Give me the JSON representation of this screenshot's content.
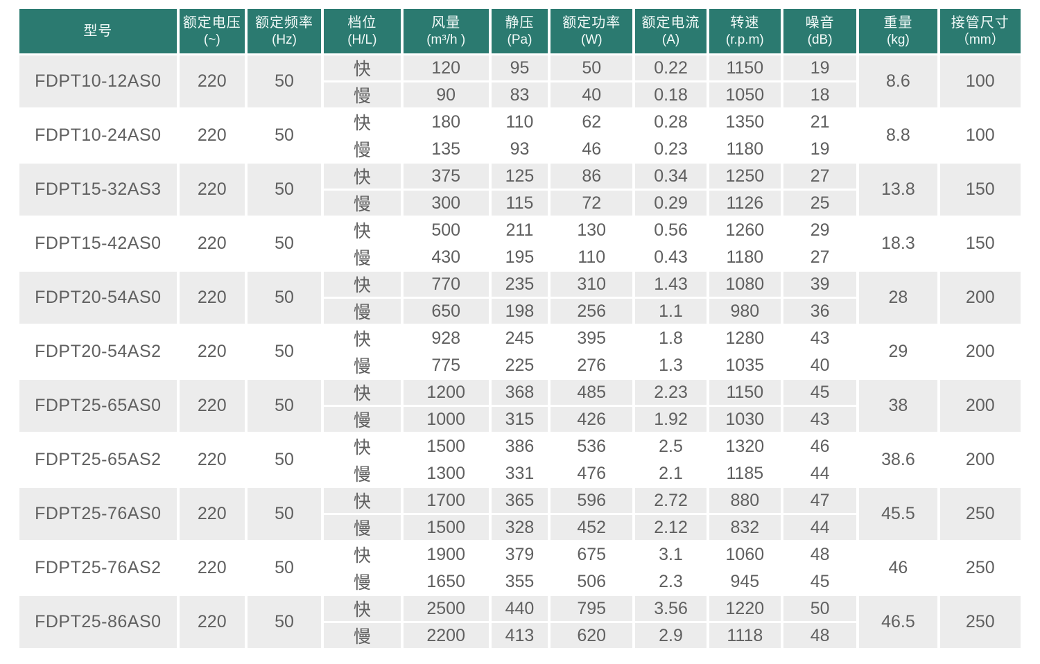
{
  "colors": {
    "header_bg": "#2b7a70",
    "header_text": "#f2faf8",
    "alt_row_bg": "#ececec",
    "body_text": "#606060"
  },
  "table": {
    "columns": [
      {
        "key": "model",
        "label": "型号",
        "unit": ""
      },
      {
        "key": "voltage",
        "label": "额定电压",
        "unit": "(~)"
      },
      {
        "key": "frequency",
        "label": "额定频率",
        "unit": "(Hz)"
      },
      {
        "key": "gear",
        "label": "档位",
        "unit": "(H/L)"
      },
      {
        "key": "airflow",
        "label": "风量",
        "unit": "(m³/h )"
      },
      {
        "key": "pressure",
        "label": "静压",
        "unit": "(Pa)"
      },
      {
        "key": "power",
        "label": "额定功率",
        "unit": "(W)"
      },
      {
        "key": "current",
        "label": "额定电流",
        "unit": "(A)"
      },
      {
        "key": "speed",
        "label": "转速",
        "unit": "(r.p.m)"
      },
      {
        "key": "noise",
        "label": "噪音",
        "unit": "(dB)"
      },
      {
        "key": "weight",
        "label": "重量",
        "unit": "(kg)"
      },
      {
        "key": "pipe",
        "label": "接管尺寸",
        "unit": "（mm）"
      }
    ],
    "groups": [
      {
        "model": "FDPT10-12AS0",
        "voltage": "220",
        "frequency": "50",
        "rows": [
          {
            "gear": "快",
            "airflow": "120",
            "pressure": "95",
            "power": "50",
            "current": "0.22",
            "speed": "1150",
            "noise": "19"
          },
          {
            "gear": "慢",
            "airflow": "90",
            "pressure": "83",
            "power": "40",
            "current": "0.18",
            "speed": "1050",
            "noise": "18"
          }
        ],
        "weight": "8.6",
        "pipe": "100"
      },
      {
        "model": "FDPT10-24AS0",
        "voltage": "220",
        "frequency": "50",
        "rows": [
          {
            "gear": "快",
            "airflow": "180",
            "pressure": "110",
            "power": "62",
            "current": "0.28",
            "speed": "1350",
            "noise": "21"
          },
          {
            "gear": "慢",
            "airflow": "135",
            "pressure": "93",
            "power": "46",
            "current": "0.23",
            "speed": "1180",
            "noise": "19"
          }
        ],
        "weight": "8.8",
        "pipe": "100"
      },
      {
        "model": "FDPT15-32AS3",
        "voltage": "220",
        "frequency": "50",
        "rows": [
          {
            "gear": "快",
            "airflow": "375",
            "pressure": "125",
            "power": "86",
            "current": "0.34",
            "speed": "1250",
            "noise": "27"
          },
          {
            "gear": "慢",
            "airflow": "300",
            "pressure": "115",
            "power": "72",
            "current": "0.29",
            "speed": "1126",
            "noise": "25"
          }
        ],
        "weight": "13.8",
        "pipe": "150"
      },
      {
        "model": "FDPT15-42AS0",
        "voltage": "220",
        "frequency": "50",
        "rows": [
          {
            "gear": "快",
            "airflow": "500",
            "pressure": "211",
            "power": "130",
            "current": "0.56",
            "speed": "1260",
            "noise": "29"
          },
          {
            "gear": "慢",
            "airflow": "430",
            "pressure": "195",
            "power": "110",
            "current": "0.43",
            "speed": "1180",
            "noise": "27"
          }
        ],
        "weight": "18.3",
        "pipe": "150"
      },
      {
        "model": "FDPT20-54AS0",
        "voltage": "220",
        "frequency": "50",
        "rows": [
          {
            "gear": "快",
            "airflow": "770",
            "pressure": "235",
            "power": "310",
            "current": "1.43",
            "speed": "1080",
            "noise": "39"
          },
          {
            "gear": "慢",
            "airflow": "650",
            "pressure": "198",
            "power": "256",
            "current": "1.1",
            "speed": "980",
            "noise": "36"
          }
        ],
        "weight": "28",
        "pipe": "200"
      },
      {
        "model": "FDPT20-54AS2",
        "voltage": "220",
        "frequency": "50",
        "rows": [
          {
            "gear": "快",
            "airflow": "928",
            "pressure": "245",
            "power": "395",
            "current": "1.8",
            "speed": "1280",
            "noise": "43"
          },
          {
            "gear": "慢",
            "airflow": "775",
            "pressure": "225",
            "power": "276",
            "current": "1.3",
            "speed": "1035",
            "noise": "40"
          }
        ],
        "weight": "29",
        "pipe": "200"
      },
      {
        "model": "FDPT25-65AS0",
        "voltage": "220",
        "frequency": "50",
        "rows": [
          {
            "gear": "快",
            "airflow": "1200",
            "pressure": "368",
            "power": "485",
            "current": "2.23",
            "speed": "1150",
            "noise": "45"
          },
          {
            "gear": "慢",
            "airflow": "1000",
            "pressure": "315",
            "power": "426",
            "current": "1.92",
            "speed": "1030",
            "noise": "43"
          }
        ],
        "weight": "38",
        "pipe": "200"
      },
      {
        "model": "FDPT25-65AS2",
        "voltage": "220",
        "frequency": "50",
        "rows": [
          {
            "gear": "快",
            "airflow": "1500",
            "pressure": "386",
            "power": "536",
            "current": "2.5",
            "speed": "1320",
            "noise": "46"
          },
          {
            "gear": "慢",
            "airflow": "1300",
            "pressure": "331",
            "power": "476",
            "current": "2.1",
            "speed": "1185",
            "noise": "44"
          }
        ],
        "weight": "38.6",
        "pipe": "200"
      },
      {
        "model": "FDPT25-76AS0",
        "voltage": "220",
        "frequency": "50",
        "rows": [
          {
            "gear": "快",
            "airflow": "1700",
            "pressure": "365",
            "power": "596",
            "current": "2.72",
            "speed": "880",
            "noise": "47"
          },
          {
            "gear": "慢",
            "airflow": "1500",
            "pressure": "328",
            "power": "452",
            "current": "2.12",
            "speed": "832",
            "noise": "44"
          }
        ],
        "weight": "45.5",
        "pipe": "250"
      },
      {
        "model": "FDPT25-76AS2",
        "voltage": "220",
        "frequency": "50",
        "rows": [
          {
            "gear": "快",
            "airflow": "1900",
            "pressure": "379",
            "power": "675",
            "current": "3.1",
            "speed": "1060",
            "noise": "48"
          },
          {
            "gear": "慢",
            "airflow": "1650",
            "pressure": "355",
            "power": "506",
            "current": "2.3",
            "speed": "945",
            "noise": "45"
          }
        ],
        "weight": "46",
        "pipe": "250"
      },
      {
        "model": "FDPT25-86AS0",
        "voltage": "220",
        "frequency": "50",
        "rows": [
          {
            "gear": "快",
            "airflow": "2500",
            "pressure": "440",
            "power": "795",
            "current": "3.56",
            "speed": "1220",
            "noise": "50"
          },
          {
            "gear": "慢",
            "airflow": "2200",
            "pressure": "413",
            "power": "620",
            "current": "2.9",
            "speed": "1118",
            "noise": "48"
          }
        ],
        "weight": "46.5",
        "pipe": "250"
      }
    ]
  }
}
